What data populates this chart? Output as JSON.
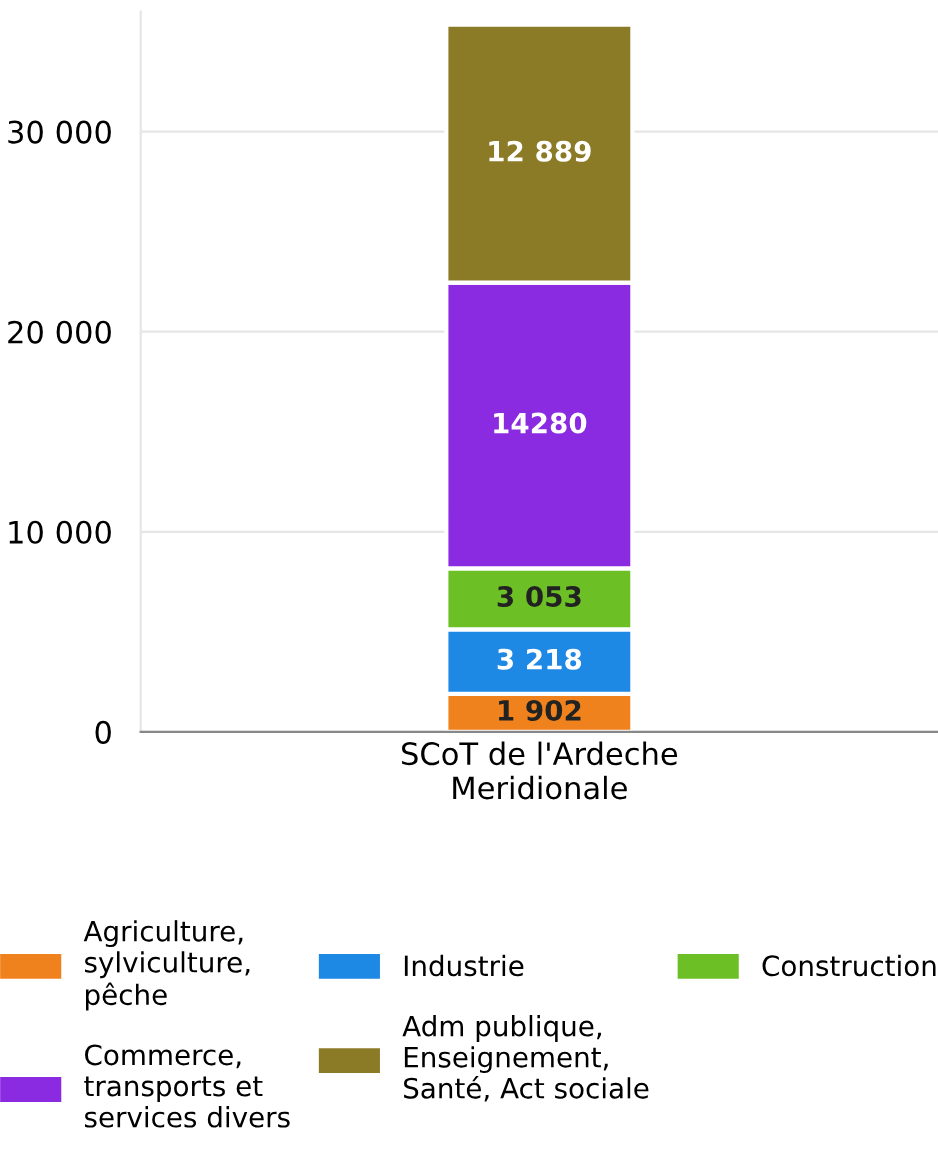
{
  "chart_data": {
    "type": "bar",
    "stacked": true,
    "categories": [
      "SCoT de l'Ardeche\nMeridionale"
    ],
    "series": [
      {
        "name": "Agriculture,\nsylviculture,\npêche",
        "color": "#f0821e",
        "values": [
          1902
        ],
        "value_labels": [
          "1 902"
        ]
      },
      {
        "name": "Industrie",
        "color": "#1e88e5",
        "values": [
          3218
        ],
        "value_labels": [
          "3 218"
        ]
      },
      {
        "name": "Construction",
        "color": "#6cc025",
        "values": [
          3053
        ],
        "value_labels": [
          "3 053"
        ]
      },
      {
        "name": "Commerce,\ntransports et\nservices divers",
        "color": "#8a2be2",
        "values": [
          14280
        ],
        "value_labels": [
          "14280"
        ]
      },
      {
        "name": "Adm publique,\nEnseignement,\nSanté, Act sociale",
        "color": "#8b7a26",
        "values": [
          12889
        ],
        "value_labels": [
          "12 889"
        ]
      }
    ],
    "ylim": [
      0,
      36000
    ],
    "yticks": [
      0,
      {
        "value": 10000,
        "label": "10 000"
      },
      {
        "value": 20000,
        "label": "20 000"
      },
      {
        "value": 30000,
        "label": "30 000"
      }
    ],
    "grid": "y",
    "legend": "bottom"
  }
}
